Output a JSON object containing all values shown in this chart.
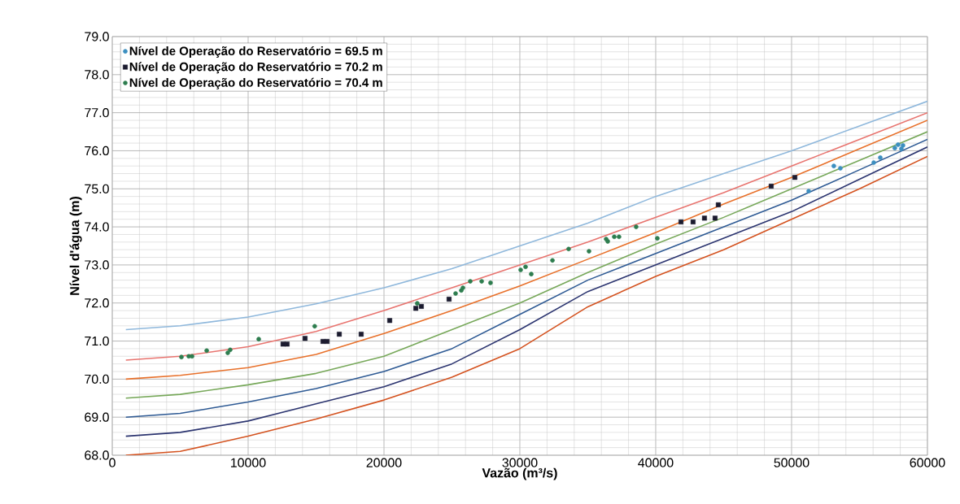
{
  "chart_data": {
    "type": "line",
    "xlabel": "Vazão (m³/s)",
    "ylabel": "Nível d'água (m)",
    "xlim": [
      0,
      60000
    ],
    "xticks": [
      0,
      10000,
      20000,
      30000,
      40000,
      50000,
      60000
    ],
    "ylim": [
      68,
      79
    ],
    "yticks": [
      {
        "value": 68,
        "label": "68.0"
      },
      {
        "value": 69,
        "label": "69.0"
      },
      {
        "value": 70,
        "label": "70.0"
      },
      {
        "value": 71,
        "label": "71.0"
      },
      {
        "value": 72,
        "label": "72.0"
      },
      {
        "value": 73,
        "label": "73.0"
      },
      {
        "value": 74,
        "label": "74.0"
      },
      {
        "value": 75,
        "label": "75.0"
      },
      {
        "value": 76,
        "label": "76.0"
      },
      {
        "value": 77,
        "label": "77.0"
      },
      {
        "value": 78,
        "label": "78.0"
      },
      {
        "value": 79,
        "label": "79.0"
      }
    ],
    "grid": true,
    "legend": "top left",
    "series": [
      {
        "marker": "none",
        "color": "#8fb8dc",
        "x": [
          1000,
          5000,
          10000,
          15000,
          20000,
          25000,
          30000,
          35000,
          40000,
          45000,
          50000,
          55000,
          60000
        ],
        "values": [
          71.3,
          71.4,
          71.63,
          71.98,
          72.4,
          72.9,
          73.5,
          74.1,
          74.8,
          75.4,
          76.0,
          76.65,
          77.3
        ]
      },
      {
        "marker": "none",
        "color": "#e8746f",
        "x": [
          1000,
          5000,
          10000,
          15000,
          20000,
          25000,
          30000,
          35000,
          40000,
          45000,
          50000,
          55000,
          60000
        ],
        "values": [
          70.5,
          70.6,
          70.85,
          71.25,
          71.8,
          72.4,
          73.0,
          73.6,
          74.25,
          74.9,
          75.6,
          76.3,
          77.0
        ]
      },
      {
        "marker": "none",
        "color": "#e8702a",
        "x": [
          1000,
          5000,
          10000,
          15000,
          20000,
          25000,
          30000,
          35000,
          40000,
          45000,
          50000,
          55000,
          60000
        ],
        "values": [
          70.0,
          70.1,
          70.3,
          70.65,
          71.2,
          71.8,
          72.45,
          73.15,
          73.85,
          74.6,
          75.3,
          76.05,
          76.8
        ]
      },
      {
        "marker": "none",
        "color": "#77a85a",
        "x": [
          1000,
          5000,
          10000,
          15000,
          20000,
          25000,
          30000,
          35000,
          40000,
          45000,
          50000,
          55000,
          60000
        ],
        "values": [
          69.5,
          69.6,
          69.85,
          70.15,
          70.6,
          71.3,
          72.0,
          72.8,
          73.55,
          74.25,
          75.0,
          75.75,
          76.5
        ]
      },
      {
        "marker": "none",
        "color": "#2e5a94",
        "x": [
          1000,
          5000,
          10000,
          15000,
          20000,
          25000,
          30000,
          35000,
          40000,
          45000,
          50000,
          55000,
          60000
        ],
        "values": [
          69.0,
          69.1,
          69.4,
          69.75,
          70.2,
          70.8,
          71.7,
          72.6,
          73.3,
          74.0,
          74.7,
          75.5,
          76.3
        ]
      },
      {
        "marker": "none",
        "color": "#2c3570",
        "x": [
          1000,
          5000,
          10000,
          15000,
          20000,
          25000,
          30000,
          35000,
          40000,
          45000,
          50000,
          55000,
          60000
        ],
        "values": [
          68.5,
          68.6,
          68.9,
          69.35,
          69.8,
          70.4,
          71.3,
          72.3,
          73.0,
          73.7,
          74.4,
          75.25,
          76.1
        ]
      },
      {
        "marker": "none",
        "color": "#d4521f",
        "x": [
          1000,
          5000,
          10000,
          15000,
          20000,
          25000,
          30000,
          35000,
          40000,
          45000,
          50000,
          55000,
          60000
        ],
        "values": [
          68.0,
          68.1,
          68.5,
          68.95,
          69.45,
          70.05,
          70.8,
          71.9,
          72.7,
          73.4,
          74.2,
          75.0,
          75.85
        ]
      },
      {
        "type": "scatter",
        "marker": "circle",
        "name": "Nível de Operação do Reservatório = 69.5 m",
        "color": "#3d8fc0",
        "x": [
          51260,
          53110,
          53590,
          56050,
          56530,
          57600,
          57840,
          58200,
          58080
        ],
        "values": [
          74.94,
          75.6,
          75.54,
          75.69,
          75.82,
          76.07,
          76.16,
          76.14,
          76.05
        ]
      },
      {
        "type": "scatter",
        "marker": "square",
        "name": "Nível de Operação do Reservatório = 70.2 m",
        "color": "#1a1a2e",
        "x": [
          12570,
          12870,
          14190,
          15510,
          15810,
          16710,
          18320,
          20420,
          22340,
          22750,
          24790,
          41860,
          42750,
          43590,
          44370,
          44610,
          48500,
          50240
        ],
        "values": [
          70.92,
          70.92,
          71.07,
          70.99,
          70.99,
          71.18,
          71.18,
          71.54,
          71.86,
          71.91,
          72.1,
          74.13,
          74.13,
          74.23,
          74.23,
          74.58,
          75.07,
          75.3
        ]
      },
      {
        "type": "scatter",
        "marker": "circle",
        "name": "Nível de Operação do Reservatório = 70.4 m",
        "color": "#2e7d4f",
        "x": [
          5090,
          5630,
          5870,
          6950,
          8500,
          8680,
          10780,
          14900,
          22450,
          25270,
          25690,
          25810,
          26350,
          27190,
          27840,
          30060,
          30420,
          30840,
          32400,
          33590,
          35090,
          36350,
          36470,
          36950,
          37300,
          38560,
          40120
        ],
        "values": [
          70.58,
          70.6,
          70.6,
          70.75,
          70.69,
          70.77,
          71.05,
          71.39,
          71.99,
          72.25,
          72.33,
          72.4,
          72.57,
          72.57,
          72.53,
          72.87,
          72.95,
          72.76,
          73.12,
          73.42,
          73.36,
          73.68,
          73.62,
          73.74,
          73.74,
          74.0,
          73.7
        ]
      }
    ]
  }
}
